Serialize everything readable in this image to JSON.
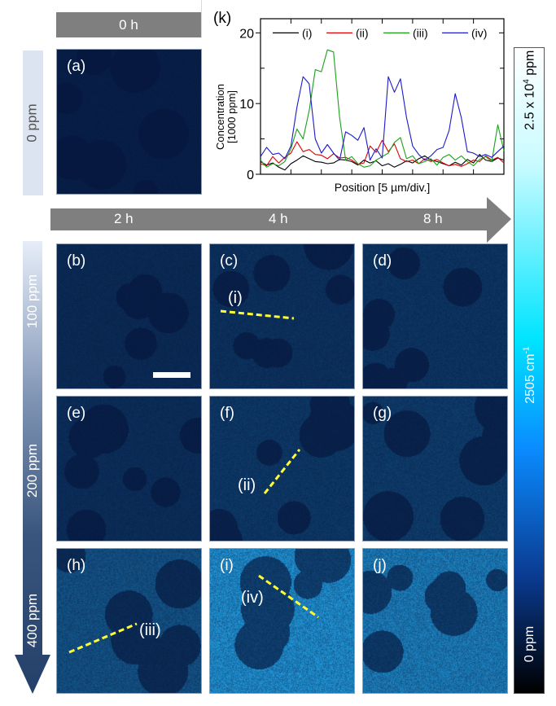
{
  "top_header": {
    "time_label": "0 h",
    "dose_label": "0 ppm"
  },
  "time_axis": {
    "labels": [
      "2 h",
      "4 h",
      "8 h"
    ]
  },
  "dose_axis": {
    "labels": [
      "100 ppm",
      "200 ppm",
      "400 ppm"
    ]
  },
  "panels": [
    {
      "label": "(a)",
      "brightness": 0.05
    },
    {
      "label": "(b)",
      "brightness": 0.12
    },
    {
      "label": "(c)",
      "brightness": 0.16
    },
    {
      "label": "(d)",
      "brightness": 0.18
    },
    {
      "label": "(e)",
      "brightness": 0.14
    },
    {
      "label": "(f)",
      "brightness": 0.2
    },
    {
      "label": "(g)",
      "brightness": 0.22
    },
    {
      "label": "(h)",
      "brightness": 0.35
    },
    {
      "label": "(i)",
      "brightness": 0.7
    },
    {
      "label": "(j)",
      "brightness": 0.6
    }
  ],
  "line_profiles": [
    {
      "label": "(i)",
      "panel": "(c)"
    },
    {
      "label": "(ii)",
      "panel": "(f)"
    },
    {
      "label": "(iii)",
      "panel": "(h)"
    },
    {
      "label": "(iv)",
      "panel": "(i)"
    }
  ],
  "colorbar": {
    "top_label": "2.5 x 10",
    "top_label_sup": "4",
    "top_label_unit": " ppm",
    "middle_label": "2505 cm",
    "middle_label_sup": "-1",
    "bottom_label": "0 ppm",
    "colors": [
      "#ffffff",
      "#00e5ff",
      "#0080ff",
      "#000000"
    ]
  },
  "colors": {
    "header_gray": "#7f7f7f",
    "profile_line": "#ffff33",
    "dose_light": "#e6edf8",
    "dose_dark": "#24406a"
  },
  "chart_data": {
    "type": "line",
    "panel_label": "(k)",
    "title": "",
    "xlabel": "Position [5 µm/div.]",
    "ylabel": "Concentration",
    "ylabel2": "[1000 ppm]",
    "xlim": [
      0,
      40
    ],
    "ylim": [
      0,
      22
    ],
    "yticks": [
      0,
      10,
      20
    ],
    "xtick_step": 5,
    "grid": false,
    "legend_position": "top",
    "x": [
      0,
      1,
      2,
      3,
      4,
      5,
      6,
      7,
      8,
      9,
      10,
      11,
      12,
      13,
      14,
      15,
      16,
      17,
      18,
      19,
      20,
      21,
      22,
      23,
      24,
      25,
      26,
      27,
      28,
      29,
      30,
      31,
      32,
      33,
      34,
      35,
      36,
      37,
      38,
      39,
      40
    ],
    "series": [
      {
        "name": "(i)",
        "color": "#000000",
        "values": [
          1.8,
          1.3,
          1.6,
          1.0,
          0.6,
          1.5,
          2.0,
          2.6,
          2.2,
          1.8,
          1.7,
          1.5,
          1.6,
          2.1,
          2.0,
          1.8,
          1.3,
          2.0,
          1.6,
          1.9,
          1.2,
          1.5,
          1.0,
          1.4,
          1.9,
          1.6,
          2.2,
          2.6,
          2.0,
          1.8,
          1.5,
          1.2,
          1.7,
          1.3,
          2.1,
          1.6,
          2.8,
          2.0,
          1.8,
          2.3,
          2.0
        ]
      },
      {
        "name": "(ii)",
        "color": "#e00000",
        "values": [
          1.5,
          1.2,
          2.5,
          1.6,
          2.4,
          3.0,
          4.6,
          3.2,
          3.5,
          2.8,
          2.7,
          2.2,
          2.9,
          2.3,
          2.4,
          2.0,
          1.4,
          1.6,
          4.0,
          3.1,
          4.8,
          3.2,
          4.3,
          2.2,
          1.8,
          2.0,
          1.5,
          2.2,
          1.8,
          2.1,
          1.6,
          1.2,
          1.4,
          1.1,
          1.5,
          2.0,
          1.8,
          2.6,
          2.0,
          2.4,
          1.6
        ]
      },
      {
        "name": "(iii)",
        "color": "#1aa01a",
        "values": [
          2.0,
          1.0,
          1.5,
          1.2,
          1.8,
          3.6,
          6.4,
          5.0,
          9.0,
          14.8,
          14.5,
          17.6,
          17.3,
          8.0,
          2.0,
          2.5,
          1.5,
          1.0,
          1.2,
          2.0,
          2.5,
          3.0,
          4.5,
          5.2,
          2.2,
          2.6,
          1.5,
          1.8,
          2.2,
          1.3,
          2.4,
          2.8,
          2.0,
          2.6,
          1.8,
          1.2,
          2.1,
          2.5,
          1.8,
          7.0,
          3.3
        ]
      },
      {
        "name": "(iv)",
        "color": "#1a1acc",
        "values": [
          2.5,
          3.8,
          2.8,
          3.0,
          2.2,
          4.0,
          9.5,
          13.8,
          12.8,
          5.0,
          3.0,
          4.2,
          3.0,
          2.0,
          6.0,
          5.5,
          4.8,
          6.6,
          2.0,
          3.6,
          2.3,
          13.8,
          11.6,
          13.5,
          8.0,
          4.0,
          2.8,
          2.0,
          2.6,
          3.5,
          3.8,
          6.2,
          11.4,
          8.0,
          3.2,
          3.0,
          2.5,
          2.8,
          2.4,
          3.2,
          4.0
        ]
      }
    ]
  }
}
